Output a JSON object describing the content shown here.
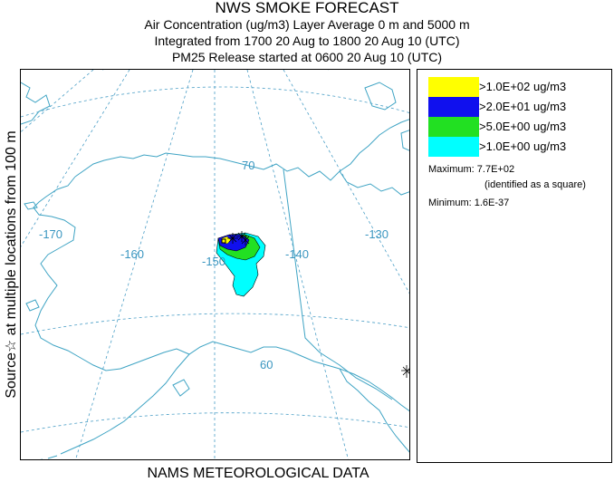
{
  "header": {
    "title": "NWS SMOKE FORECAST",
    "line2": "Air Concentration (ug/m3) Layer Average     0 m and  5000 m",
    "line3": "Integrated from 1700 20 Aug to 1800 20 Aug 10 (UTC)",
    "line4": "PM25 Release started at 0600 20 Aug 10 (UTC)"
  },
  "side_label": "Source☆  at multiple locations   from   100 m",
  "footer_label": "NAMS METEOROLOGICAL DATA",
  "map": {
    "longitude_labels": [
      "-170",
      "-160",
      "-150",
      "-140",
      "-130"
    ],
    "latitude_labels": [
      "70",
      "60"
    ],
    "colors": {
      "coastline": "#3fa4c4",
      "graticule": "#4a9ec6",
      "border": "#3fa4c4",
      "label": "#3a96c0"
    }
  },
  "legend": {
    "items": [
      {
        "label": ">1.0E+02 ug/m3",
        "color": "#ffff00"
      },
      {
        "label": ">2.0E+01 ug/m3",
        "color": "#1010ee"
      },
      {
        "label": ">5.0E+00 ug/m3",
        "color": "#22e022"
      },
      {
        "label": ">1.0E+00 ug/m3",
        "color": "#00ffff"
      }
    ],
    "maximum_label": "Maximum: 7.7E+02",
    "maximum_note": "(identified as a square)",
    "minimum_label": "Minimum: 1.6E-37"
  }
}
